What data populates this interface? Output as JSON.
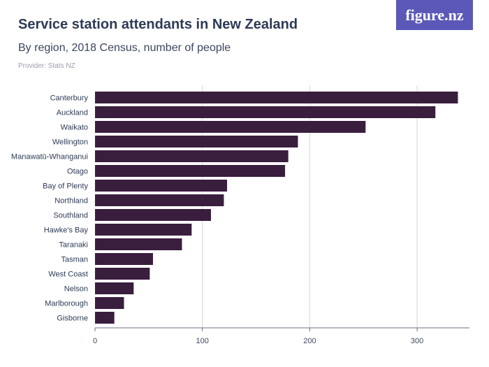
{
  "header": {
    "title": "Service station attendants in New Zealand",
    "subtitle": "By region, 2018 Census, number of people",
    "provider": "Provider: Stats NZ",
    "logo": "figure.nz"
  },
  "colors": {
    "bar": "#3a1e3e",
    "grid": "#e3e3e3",
    "logo_bg": "#5b58b8"
  },
  "chart_data": {
    "type": "bar",
    "orientation": "horizontal",
    "categories": [
      "Canterbury",
      "Auckland",
      "Waikato",
      "Wellington",
      "Manawatū-Whanganui",
      "Otago",
      "Bay of Plenty",
      "Northland",
      "Southland",
      "Hawke's Bay",
      "Taranaki",
      "Tasman",
      "West Coast",
      "Nelson",
      "Marlborough",
      "Gisborne"
    ],
    "values": [
      338,
      317,
      252,
      189,
      180,
      177,
      123,
      120,
      108,
      90,
      81,
      54,
      51,
      36,
      27,
      18
    ],
    "xlim": [
      0,
      350
    ],
    "xticks": [
      0,
      100,
      200,
      300
    ],
    "grid": true,
    "title": "Service station attendants in New Zealand",
    "subtitle": "By region, 2018 Census, number of people"
  }
}
